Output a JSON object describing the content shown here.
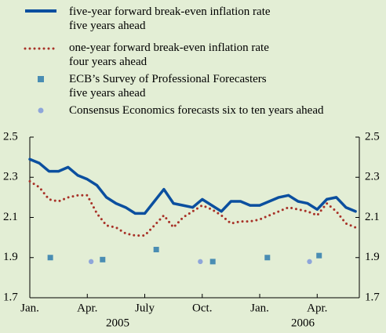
{
  "chart_data": {
    "type": "line",
    "background": "#e3eed5",
    "years": [
      "2005",
      "2006"
    ],
    "xlim": [
      0,
      17.2
    ],
    "xticks": [
      {
        "value": 0,
        "label": "Jan."
      },
      {
        "value": 3,
        "label": "Apr."
      },
      {
        "value": 6,
        "label": "July"
      },
      {
        "value": 9,
        "label": "Oct."
      },
      {
        "value": 12,
        "label": "Jan."
      },
      {
        "value": 15,
        "label": "Apr."
      }
    ],
    "ylim": [
      1.7,
      2.5
    ],
    "yticks": [
      1.7,
      1.9,
      2.1,
      2.3,
      2.5
    ],
    "grid": false,
    "series": [
      {
        "name": "five-year forward break-even inflation rate\nfive years ahead",
        "color": "#0b4f9f",
        "style": "solid",
        "x": [
          0,
          0.5,
          1,
          1.5,
          2,
          2.5,
          3,
          3.5,
          4,
          4.5,
          5,
          5.5,
          6,
          6.5,
          7,
          7.5,
          8,
          8.5,
          9,
          9.5,
          10,
          10.5,
          11,
          11.5,
          12,
          12.5,
          13,
          13.5,
          14,
          14.5,
          15,
          15.5,
          16,
          16.5,
          17
        ],
        "values": [
          2.39,
          2.37,
          2.33,
          2.33,
          2.35,
          2.31,
          2.29,
          2.26,
          2.2,
          2.17,
          2.15,
          2.12,
          2.12,
          2.18,
          2.24,
          2.17,
          2.16,
          2.15,
          2.19,
          2.16,
          2.13,
          2.18,
          2.18,
          2.16,
          2.16,
          2.18,
          2.2,
          2.21,
          2.18,
          2.17,
          2.14,
          2.19,
          2.2,
          2.15,
          2.13
        ]
      },
      {
        "name": "one-year forward break-even inflation rate\nfour years ahead",
        "color": "#a83228",
        "style": "dotted",
        "x": [
          0,
          0.5,
          1,
          1.5,
          2,
          2.5,
          3,
          3.5,
          4,
          4.5,
          5,
          5.5,
          6,
          6.5,
          7,
          7.5,
          8,
          8.5,
          9,
          9.5,
          10,
          10.5,
          11,
          11.5,
          12,
          12.5,
          13,
          13.5,
          14,
          14.5,
          15,
          15.5,
          16,
          16.5,
          17
        ],
        "values": [
          2.28,
          2.25,
          2.19,
          2.18,
          2.2,
          2.21,
          2.21,
          2.12,
          2.06,
          2.05,
          2.02,
          2.01,
          2.01,
          2.06,
          2.11,
          2.05,
          2.1,
          2.13,
          2.16,
          2.14,
          2.11,
          2.07,
          2.08,
          2.08,
          2.09,
          2.11,
          2.13,
          2.15,
          2.14,
          2.13,
          2.11,
          2.17,
          2.13,
          2.07,
          2.05
        ]
      },
      {
        "name": "ECB’s Survey of Professional Forecasters\nfive years ahead",
        "color": "#4a8db3",
        "marker": "square",
        "x": [
          1.07,
          3.8,
          6.6,
          9.55,
          12.4,
          15.1
        ],
        "values": [
          1.9,
          1.89,
          1.94,
          1.88,
          1.9,
          1.91
        ]
      },
      {
        "name": "Consensus Economics forecasts six to ten years ahead",
        "color": "#8ea6da",
        "marker": "circle",
        "x": [
          3.2,
          8.9,
          14.6
        ],
        "values": [
          1.88,
          1.88,
          1.88
        ]
      }
    ]
  }
}
